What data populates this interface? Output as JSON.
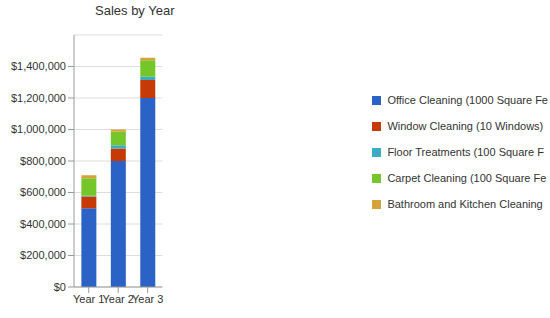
{
  "chart_data": {
    "type": "bar",
    "title": "Sales by Year",
    "stacked": true,
    "grid": true,
    "legend": "right",
    "categories": [
      "Year 1",
      "Year 2",
      "Year 3"
    ],
    "series": [
      {
        "name": "Office Cleaning (1000 Square Fe",
        "color": "#2a62c6",
        "values": [
          500000,
          800000,
          1200000
        ]
      },
      {
        "name": "Window Cleaning (10 Windows)",
        "color": "#c63a08",
        "values": [
          75000,
          80000,
          115000
        ]
      },
      {
        "name": "Floor Treatments (100 Square F",
        "color": "#3aacc6",
        "values": [
          5000,
          20000,
          20000
        ]
      },
      {
        "name": "Carpet Cleaning (100 Square Fe",
        "color": "#74c62a",
        "values": [
          110000,
          85000,
          105000
        ]
      },
      {
        "name": "Bathroom and Kitchen Cleaning",
        "color": "#d6a23a",
        "values": [
          20000,
          15000,
          15000
        ]
      }
    ],
    "ylim": [
      0,
      1600000
    ],
    "yticks": [
      {
        "value": 0,
        "label": "$0"
      },
      {
        "value": 200000,
        "label": "$200,000"
      },
      {
        "value": 400000,
        "label": "$400,000"
      },
      {
        "value": 600000,
        "label": "$600,000"
      },
      {
        "value": 800000,
        "label": "$800,000"
      },
      {
        "value": 1000000,
        "label": "$1,000,000"
      },
      {
        "value": 1200000,
        "label": "$1,200,000"
      },
      {
        "value": 1400000,
        "label": "$1,400,000"
      }
    ]
  }
}
